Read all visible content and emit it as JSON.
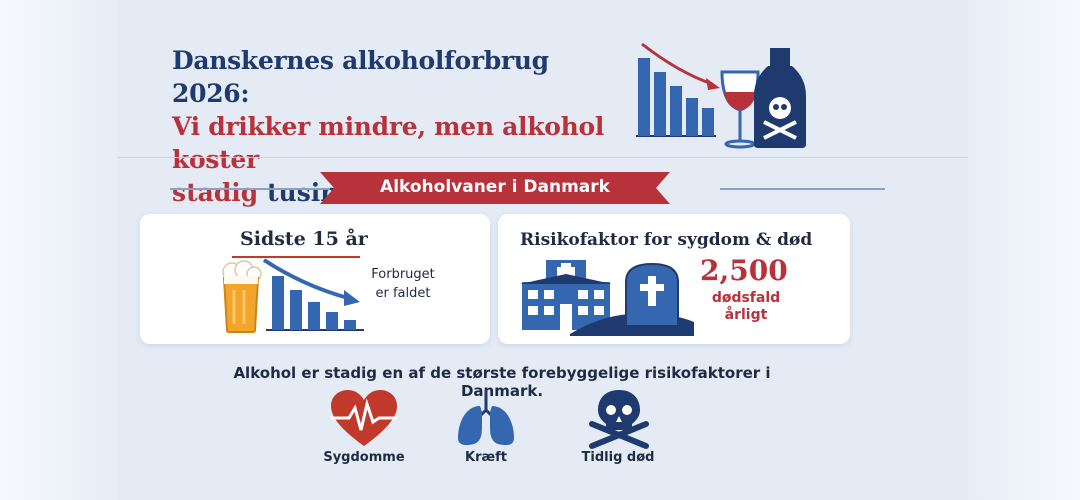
{
  "header": {
    "title_line1": "Danskernes alkoholforbrug 2026:",
    "title_line2": "Vi drikker mindre, men alkohol koster",
    "title_line3_red": "stadig",
    "title_line3_dark": " tusindvis af liv hvert år"
  },
  "banner": {
    "label": "Alkoholvaner i Danmark"
  },
  "left_card": {
    "title": "Sidste 15 år",
    "note_line1": "Forbruget",
    "note_line2": "er faldet",
    "icons": [
      "beer-glass-icon",
      "declining-bar-chart-icon",
      "down-arrow-icon"
    ]
  },
  "right_card": {
    "title": "Risikofaktor for sygdom & død",
    "deaths_value": "2,500",
    "deaths_label_line1": "dødsfald",
    "deaths_label_line2": "årligt",
    "icons": [
      "hospital-icon",
      "gravestone-icon"
    ]
  },
  "footer": {
    "statement": "Alkohol er stadig en af de største forebyggelige risikofaktorer i Danmark.",
    "items": [
      {
        "label": "Sygdomme",
        "icon": "heart-pulse-icon"
      },
      {
        "label": "Kræft",
        "icon": "lungs-icon"
      },
      {
        "label": "Tidlig død",
        "icon": "skull-crossbones-icon"
      }
    ]
  },
  "colors": {
    "navy": "#1f3a6e",
    "blue": "#3566b0",
    "red": "#b8323c",
    "beer": "#f2a52a"
  }
}
